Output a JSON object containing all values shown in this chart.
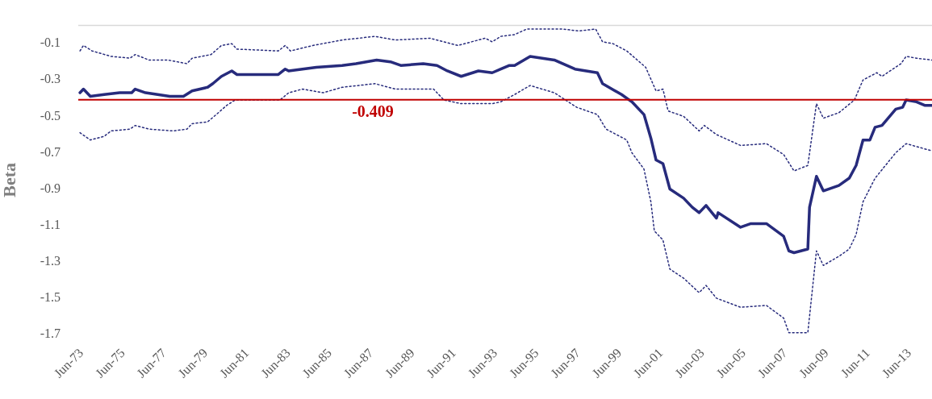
{
  "chart_data": {
    "type": "line",
    "ylabel": "Beta",
    "marker": "none",
    "grid": false,
    "legend": false,
    "xlim": [
      "1973-04",
      "2014-07"
    ],
    "ylim": [
      -1.7,
      0
    ],
    "xticks": [
      {
        "value": "1973-06",
        "label": "Jun-73"
      },
      {
        "value": "1975-06",
        "label": "Jun-75"
      },
      {
        "value": "1977-06",
        "label": "Jun-77"
      },
      {
        "value": "1979-06",
        "label": "Jun-79"
      },
      {
        "value": "1981-06",
        "label": "Jun-81"
      },
      {
        "value": "1983-06",
        "label": "Jun-83"
      },
      {
        "value": "1985-06",
        "label": "Jun-85"
      },
      {
        "value": "1987-06",
        "label": "Jun-87"
      },
      {
        "value": "1989-06",
        "label": "Jun-89"
      },
      {
        "value": "1991-06",
        "label": "Jun-91"
      },
      {
        "value": "1993-06",
        "label": "Jun-93"
      },
      {
        "value": "1995-06",
        "label": "Jun-95"
      },
      {
        "value": "1997-06",
        "label": "Jun-97"
      },
      {
        "value": "1999-06",
        "label": "Jun-99"
      },
      {
        "value": "2001-06",
        "label": "Jun-01"
      },
      {
        "value": "2003-06",
        "label": "Jun-03"
      },
      {
        "value": "2005-06",
        "label": "Jun-05"
      },
      {
        "value": "2007-06",
        "label": "Jun-07"
      },
      {
        "value": "2009-06",
        "label": "Jun-09"
      },
      {
        "value": "2011-06",
        "label": "Jun-11"
      },
      {
        "value": "2013-06",
        "label": "Jun-13"
      }
    ],
    "yticks": [
      -0.1,
      -0.3,
      -0.5,
      -0.7,
      -0.9,
      -1.1,
      -1.3,
      -1.5,
      -1.7
    ],
    "ref_lines": [
      {
        "axis": "y",
        "value": -0.409,
        "label": "-0.409",
        "color": "#c00000",
        "line_style": "solid"
      }
    ],
    "series": [
      {
        "color": "#272b7c",
        "line_style": "solid",
        "x": [
          "1973-05",
          "1973-07",
          "1973-11",
          "1974-07",
          "1975-04",
          "1975-11",
          "1976-01",
          "1976-07",
          "1977-09",
          "1978-05",
          "1978-10",
          "1979-07",
          "1979-10",
          "1980-03",
          "1980-09",
          "1980-12",
          "1982-04",
          "1982-12",
          "1983-04",
          "1983-06",
          "1984-10",
          "1986-01",
          "1986-09",
          "1987-09",
          "1988-05",
          "1988-11",
          "1989-12",
          "1990-08",
          "1991-02",
          "1991-10",
          "1992-08",
          "1993-04",
          "1993-09",
          "1994-02",
          "1994-05",
          "1995-02",
          "1996-04",
          "1997-04",
          "1998-05",
          "1998-08",
          "1999-07",
          "2000-01",
          "2000-08",
          "2000-12",
          "2001-03",
          "2001-07",
          "2001-11",
          "2002-07",
          "2002-12",
          "2003-04",
          "2003-08",
          "2004-02",
          "2004-03",
          "2005-04",
          "2005-10",
          "2006-07",
          "2007-05",
          "2007-08",
          "2007-11",
          "2008-07",
          "2008-08",
          "2008-12",
          "2009-04",
          "2010-01",
          "2010-07",
          "2010-11",
          "2011-03",
          "2011-07",
          "2011-10",
          "2012-02",
          "2012-10",
          "2013-02",
          "2013-04",
          "2013-10",
          "2014-03",
          "2014-07"
        ],
        "values": [
          -0.37,
          -0.35,
          -0.39,
          -0.38,
          -0.37,
          -0.37,
          -0.35,
          -0.37,
          -0.39,
          -0.39,
          -0.36,
          -0.34,
          -0.32,
          -0.28,
          -0.25,
          -0.27,
          -0.27,
          -0.27,
          -0.24,
          -0.25,
          -0.23,
          -0.22,
          -0.21,
          -0.19,
          -0.2,
          -0.22,
          -0.21,
          -0.22,
          -0.25,
          -0.28,
          -0.25,
          -0.26,
          -0.24,
          -0.22,
          -0.22,
          -0.17,
          -0.19,
          -0.24,
          -0.26,
          -0.32,
          -0.38,
          -0.42,
          -0.49,
          -0.62,
          -0.74,
          -0.76,
          -0.9,
          -0.95,
          -1.0,
          -1.03,
          -0.99,
          -1.06,
          -1.03,
          -1.11,
          -1.09,
          -1.09,
          -1.16,
          -1.24,
          -1.25,
          -1.23,
          -1.0,
          -0.83,
          -0.91,
          -0.88,
          -0.84,
          -0.77,
          -0.63,
          -0.63,
          -0.56,
          -0.55,
          -0.46,
          -0.45,
          -0.41,
          -0.42,
          -0.44,
          -0.44
        ]
      },
      {
        "color": "#272b7c",
        "line_style": "dotted",
        "x": [
          "1973-05",
          "1973-07",
          "1973-12",
          "1974-11",
          "1975-10",
          "1976-01",
          "1976-09",
          "1977-08",
          "1978-07",
          "1978-10",
          "1979-09",
          "1980-03",
          "1980-09",
          "1980-12",
          "1982-12",
          "1983-04",
          "1983-07",
          "1984-08",
          "1986-01",
          "1987-08",
          "1988-08",
          "1990-04",
          "1991-08",
          "1992-12",
          "1993-04",
          "1993-09",
          "1994-05",
          "1994-12",
          "1996-09",
          "1997-06",
          "1998-04",
          "1998-08",
          "1999-02",
          "1999-10",
          "2000-09",
          "2001-03",
          "2001-07",
          "2001-10",
          "2002-07",
          "2003-04",
          "2003-07",
          "2004-02",
          "2005-04",
          "2006-07",
          "2007-05",
          "2007-11",
          "2008-07",
          "2008-12",
          "2009-04",
          "2010-01",
          "2010-10",
          "2011-03",
          "2011-11",
          "2012-02",
          "2013-01",
          "2013-04",
          "2013-10",
          "2014-07"
        ],
        "values": [
          -0.14,
          -0.11,
          -0.14,
          -0.17,
          -0.18,
          -0.16,
          -0.19,
          -0.19,
          -0.21,
          -0.18,
          -0.16,
          -0.11,
          -0.1,
          -0.13,
          -0.14,
          -0.11,
          -0.14,
          -0.11,
          -0.08,
          -0.06,
          -0.08,
          -0.07,
          -0.11,
          -0.07,
          -0.09,
          -0.06,
          -0.05,
          -0.02,
          -0.02,
          -0.03,
          -0.02,
          -0.09,
          -0.1,
          -0.14,
          -0.23,
          -0.36,
          -0.35,
          -0.47,
          -0.5,
          -0.58,
          -0.55,
          -0.6,
          -0.66,
          -0.65,
          -0.71,
          -0.8,
          -0.77,
          -0.43,
          -0.51,
          -0.48,
          -0.41,
          -0.3,
          -0.26,
          -0.28,
          -0.21,
          -0.17,
          -0.18,
          -0.19
        ]
      },
      {
        "color": "#272b7c",
        "line_style": "dotted",
        "x": [
          "1973-05",
          "1973-11",
          "1974-07",
          "1974-11",
          "1975-10",
          "1976-01",
          "1976-09",
          "1977-11",
          "1978-07",
          "1978-10",
          "1979-07",
          "1979-12",
          "1980-06",
          "1980-11",
          "1983-01",
          "1983-06",
          "1984-02",
          "1985-02",
          "1986-01",
          "1987-08",
          "1988-08",
          "1990-06",
          "1990-12",
          "1991-10",
          "1993-04",
          "1993-09",
          "1994-05",
          "1995-02",
          "1996-04",
          "1997-05",
          "1998-05",
          "1998-10",
          "1999-10",
          "2000-01",
          "2000-08",
          "2000-12",
          "2001-02",
          "2001-07",
          "2001-11",
          "2002-07",
          "2003-04",
          "2003-08",
          "2004-02",
          "2005-04",
          "2006-07",
          "2007-05",
          "2007-08",
          "2008-07",
          "2008-12",
          "2009-04",
          "2010-01",
          "2010-07",
          "2010-11",
          "2011-03",
          "2011-10",
          "2012-10",
          "2013-04",
          "2014-07"
        ],
        "values": [
          -0.59,
          -0.63,
          -0.61,
          -0.58,
          -0.57,
          -0.55,
          -0.57,
          -0.58,
          -0.57,
          -0.54,
          -0.53,
          -0.49,
          -0.44,
          -0.41,
          -0.41,
          -0.37,
          -0.35,
          -0.37,
          -0.34,
          -0.32,
          -0.35,
          -0.35,
          -0.41,
          -0.43,
          -0.43,
          -0.42,
          -0.38,
          -0.33,
          -0.37,
          -0.45,
          -0.49,
          -0.57,
          -0.63,
          -0.7,
          -0.79,
          -0.97,
          -1.13,
          -1.18,
          -1.34,
          -1.39,
          -1.47,
          -1.43,
          -1.5,
          -1.55,
          -1.54,
          -1.61,
          -1.69,
          -1.69,
          -1.24,
          -1.32,
          -1.27,
          -1.23,
          -1.15,
          -0.97,
          -0.84,
          -0.7,
          -0.65,
          -0.69
        ]
      }
    ]
  }
}
